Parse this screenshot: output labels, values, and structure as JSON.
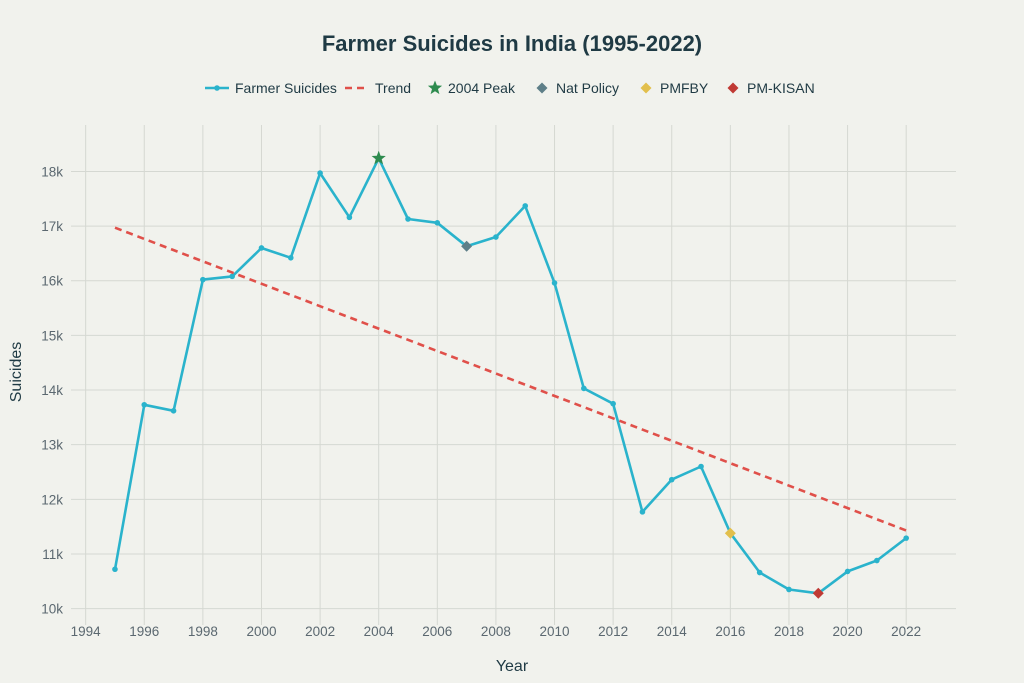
{
  "chart_data": {
    "type": "line",
    "title": "Farmer Suicides in India (1995-2022)",
    "xlabel": "Year",
    "ylabel": "Suicides",
    "xlim": [
      1993.5,
      2023.7
    ],
    "ylim": [
      9700,
      18850
    ],
    "x_ticks": [
      1994,
      1996,
      1998,
      2000,
      2002,
      2004,
      2006,
      2008,
      2010,
      2012,
      2014,
      2016,
      2018,
      2020,
      2022
    ],
    "y_ticks": [
      10000,
      11000,
      12000,
      13000,
      14000,
      15000,
      16000,
      17000,
      18000
    ],
    "y_tick_labels": [
      "10k",
      "11k",
      "12k",
      "13k",
      "14k",
      "15k",
      "16k",
      "17k",
      "18k"
    ],
    "grid": true,
    "legend_position": "top-center",
    "series": [
      {
        "name": "Farmer Suicides",
        "color": "#2ab3cc",
        "style": "line-markers",
        "x": [
          1995,
          1996,
          1997,
          1998,
          1999,
          2000,
          2001,
          2002,
          2003,
          2004,
          2005,
          2006,
          2007,
          2008,
          2009,
          2010,
          2011,
          2012,
          2013,
          2014,
          2015,
          2016,
          2017,
          2018,
          2019,
          2020,
          2021,
          2022
        ],
        "y": [
          10720,
          13730,
          13620,
          16020,
          16080,
          16600,
          16420,
          17970,
          17160,
          18240,
          17130,
          17060,
          16630,
          16800,
          17370,
          15960,
          14030,
          13750,
          11770,
          12360,
          12600,
          11380,
          10660,
          10350,
          10280,
          10680,
          10880,
          11290
        ]
      },
      {
        "name": "Trend",
        "color": "#e0504a",
        "style": "dashed",
        "x": [
          1995,
          2022
        ],
        "y": [
          16970,
          11430
        ]
      },
      {
        "name": "2004 Peak",
        "color": "#2e8b4e",
        "marker": "star",
        "x": [
          2004
        ],
        "y": [
          18240
        ]
      },
      {
        "name": "Nat Policy",
        "color": "#5e7f88",
        "marker": "diamond",
        "x": [
          2007
        ],
        "y": [
          16630
        ]
      },
      {
        "name": "PMFBY",
        "color": "#e2bf4c",
        "marker": "diamond",
        "x": [
          2016
        ],
        "y": [
          11380
        ]
      },
      {
        "name": "PM-KISAN",
        "color": "#c03a34",
        "marker": "diamond",
        "x": [
          2019
        ],
        "y": [
          10280
        ]
      }
    ]
  }
}
